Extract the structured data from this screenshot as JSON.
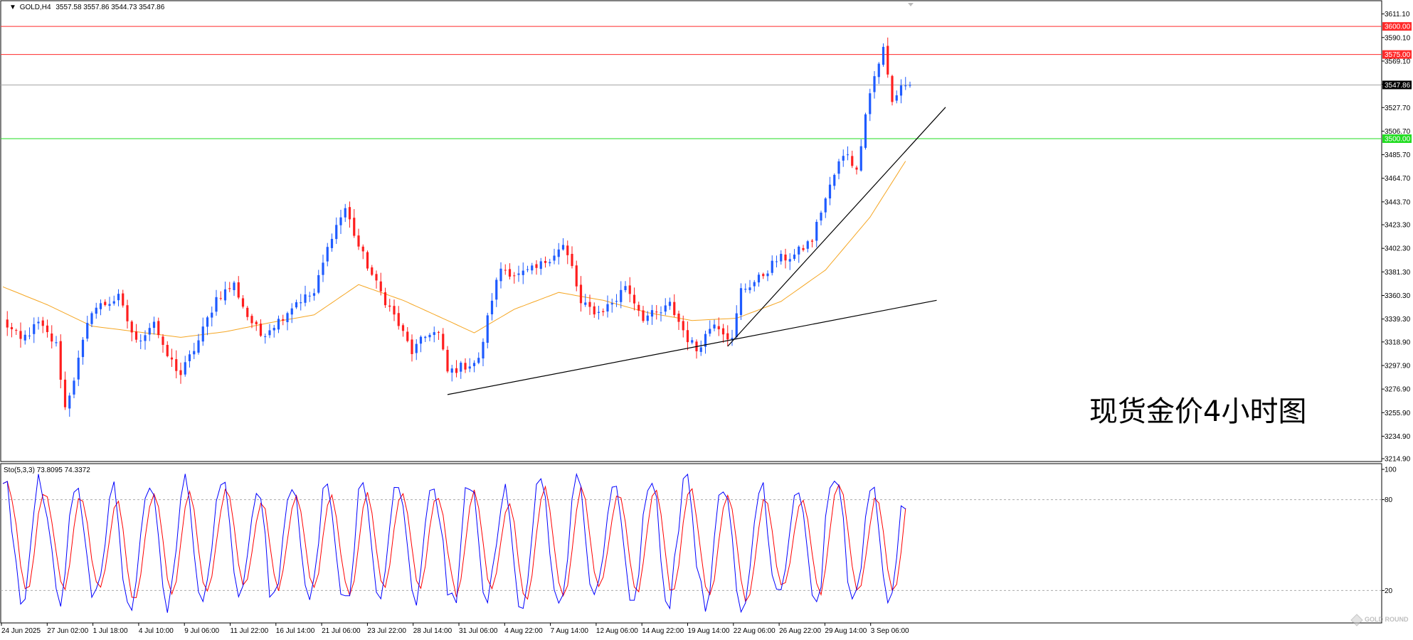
{
  "chart_data": [
    {
      "type": "candlestick",
      "symbol_label": "GOLD,H4",
      "ohlc_readout": "3557.58 3557.86 3544.73 3547.86",
      "annotation": "现货金价4小时图",
      "grid": false,
      "y_ticks": [
        3611.1,
        3590.1,
        3569.1,
        3548.4,
        3527.7,
        3506.7,
        3485.7,
        3464.7,
        3443.7,
        3423.3,
        3402.3,
        3381.3,
        3360.3,
        3339.3,
        3318.9,
        3297.9,
        3276.9,
        3255.9,
        3234.9,
        3214.9
      ],
      "ylim": [
        3214.9,
        3621.0
      ],
      "x_ticks": [
        "24 Jun 2025",
        "27 Jun 02:00",
        "1 Jul 18:00",
        "4 Jul 10:00",
        "9 Jul 06:00",
        "11 Jul 22:00",
        "16 Jul 14:00",
        "21 Jul 06:00",
        "23 Jul 22:00",
        "28 Jul 14:00",
        "31 Jul 06:00",
        "4 Aug 22:00",
        "7 Aug 14:00",
        "12 Aug 06:00",
        "14 Aug 22:00",
        "19 Aug 14:00",
        "22 Aug 06:00",
        "26 Aug 22:00",
        "29 Aug 14:00",
        "3 Sep 06:00"
      ],
      "price_lines": [
        {
          "value": 3600.0,
          "label": "3600.00",
          "color": "#ff2a2a"
        },
        {
          "value": 3575.0,
          "label": "3575.00",
          "color": "#ff2a2a"
        },
        {
          "value": 3547.86,
          "label": "3547.86",
          "color": "#a6a6a6",
          "label_bg": "#000000"
        },
        {
          "value": 3500.0,
          "label": "3500.00",
          "color": "#22dd22"
        }
      ],
      "trendlines": [
        {
          "from": {
            "bar": 100,
            "price": 3272.0
          },
          "to": {
            "bar": 210,
            "price": 3356.0
          },
          "color": "#000000"
        },
        {
          "from": {
            "bar": 163,
            "price": 3315.0
          },
          "to": {
            "bar": 212,
            "price": 3528.0
          },
          "color": "#000000"
        }
      ],
      "series": [
        {
          "name": "moving average",
          "color": "#f5a623",
          "anchors": [
            [
              0,
              3368
            ],
            [
              10,
              3352
            ],
            [
              20,
              3333
            ],
            [
              30,
              3328
            ],
            [
              40,
              3323
            ],
            [
              50,
              3328
            ],
            [
              60,
              3336
            ],
            [
              70,
              3343
            ],
            [
              80,
              3370
            ],
            [
              90,
              3356
            ],
            [
              100,
              3338
            ],
            [
              106,
              3327
            ],
            [
              115,
              3348
            ],
            [
              125,
              3363
            ],
            [
              135,
              3356
            ],
            [
              145,
              3345
            ],
            [
              155,
              3338
            ],
            [
              165,
              3340
            ],
            [
              175,
              3355
            ],
            [
              185,
              3383
            ],
            [
              195,
              3430
            ],
            [
              203,
              3480
            ]
          ]
        },
        {
          "name": "price",
          "up_color": "#1e5bff",
          "down_color": "#ff1e1e",
          "bars": 204,
          "anchors": [
            [
              0,
              3338
            ],
            [
              4,
              3320
            ],
            [
              8,
              3335
            ],
            [
              12,
              3316
            ],
            [
              14,
              3260
            ],
            [
              16,
              3287
            ],
            [
              20,
              3348
            ],
            [
              26,
              3358
            ],
            [
              30,
              3318
            ],
            [
              34,
              3338
            ],
            [
              36,
              3312
            ],
            [
              40,
              3290
            ],
            [
              44,
              3320
            ],
            [
              48,
              3358
            ],
            [
              52,
              3370
            ],
            [
              55,
              3342
            ],
            [
              58,
              3325
            ],
            [
              62,
              3338
            ],
            [
              66,
              3355
            ],
            [
              70,
              3362
            ],
            [
              74,
              3415
            ],
            [
              77,
              3438
            ],
            [
              80,
              3404
            ],
            [
              84,
              3370
            ],
            [
              88,
              3342
            ],
            [
              92,
              3310
            ],
            [
              96,
              3328
            ],
            [
              98,
              3326
            ],
            [
              100,
              3292
            ],
            [
              104,
              3298
            ],
            [
              107,
              3302
            ],
            [
              110,
              3358
            ],
            [
              112,
              3385
            ],
            [
              116,
              3378
            ],
            [
              120,
              3384
            ],
            [
              124,
              3398
            ],
            [
              126,
              3404
            ],
            [
              128,
              3385
            ],
            [
              130,
              3352
            ],
            [
              134,
              3345
            ],
            [
              138,
              3357
            ],
            [
              140,
              3370
            ],
            [
              144,
              3341
            ],
            [
              148,
              3345
            ],
            [
              150,
              3352
            ],
            [
              154,
              3322
            ],
            [
              156,
              3312
            ],
            [
              160,
              3338
            ],
            [
              164,
              3320
            ],
            [
              166,
              3365
            ],
            [
              170,
              3375
            ],
            [
              174,
              3392
            ],
            [
              178,
              3396
            ],
            [
              182,
              3410
            ],
            [
              184,
              3436
            ],
            [
              188,
              3478
            ],
            [
              190,
              3488
            ],
            [
              192,
              3470
            ],
            [
              194,
              3525
            ],
            [
              196,
              3556
            ],
            [
              198,
              3580
            ],
            [
              200,
              3532
            ],
            [
              202,
              3548
            ],
            [
              204,
              3547.86
            ]
          ]
        },
        {
          "name": "stochastic",
          "label": "Sto(5,3,3) 73.8095 74.3372",
          "main_color": "#0000ff",
          "signal_color": "#ff0000",
          "ylim": [
            0,
            100
          ],
          "levels": [
            80,
            20
          ],
          "y_ticks": [
            100,
            80,
            20
          ],
          "current": {
            "main": 73.8095,
            "signal": 74.3372
          }
        }
      ]
    }
  ],
  "watermark": "GOLD ROUND"
}
